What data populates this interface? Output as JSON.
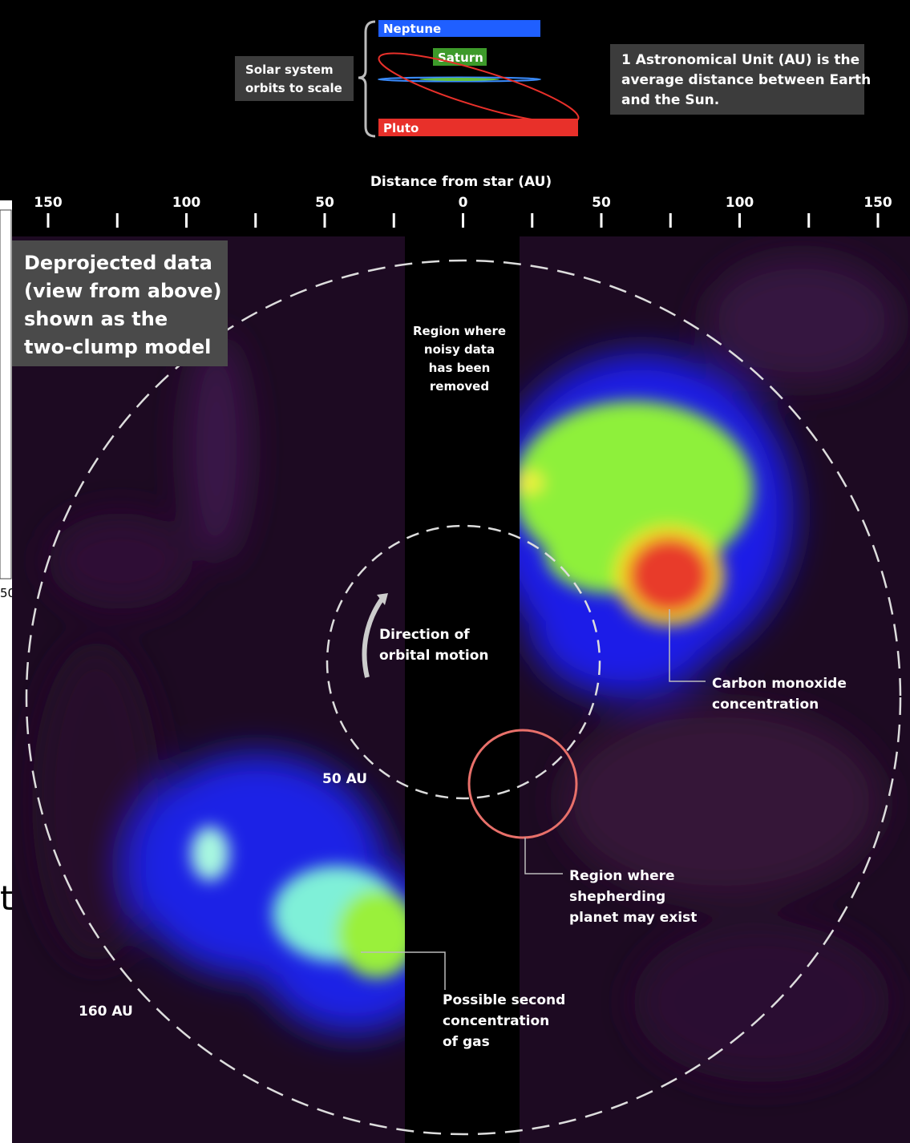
{
  "legend": {
    "label": [
      "Solar system",
      "orbits to scale"
    ],
    "planets": [
      "Neptune",
      "Saturn",
      "Pluto"
    ],
    "note": [
      "1 Astronomical Unit (AU) is the",
      "average distance between Earth",
      "and the Sun."
    ]
  },
  "axis": {
    "title": "Distance from star (AU)",
    "ticks": [
      "150",
      "100",
      "50",
      "0",
      "50",
      "100",
      "150"
    ]
  },
  "panel": {
    "title": [
      "Deprojected data",
      "(view from above)",
      "shown as the",
      "two-clump model"
    ]
  },
  "annotations": [
    {
      "lines": [
        "Region where",
        "noisy data",
        "has been",
        "removed"
      ]
    },
    {
      "lines": [
        "Direction of",
        "orbital motion"
      ]
    },
    {
      "lines": [
        "Carbon monoxide",
        "concentration"
      ]
    },
    {
      "lines": [
        "Region where",
        "shepherding",
        "planet may exist"
      ]
    },
    {
      "lines": [
        "Possible second",
        "concentration",
        "of gas"
      ]
    }
  ],
  "rings": [
    "50 AU",
    "160 AU"
  ],
  "edge": [
    "50",
    "t"
  ]
}
